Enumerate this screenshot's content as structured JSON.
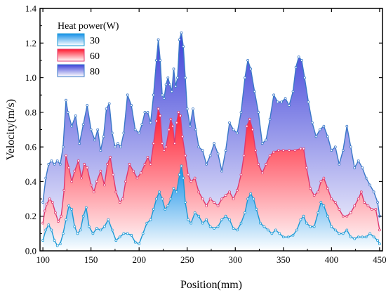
{
  "chart_data": {
    "type": "area",
    "xlabel": "Position(mm)",
    "ylabel": "Velocity(m/s)",
    "xlim": [
      97,
      453
    ],
    "ylim": [
      0,
      1.4
    ],
    "x_ticks": [
      100,
      150,
      200,
      250,
      300,
      350,
      400,
      450
    ],
    "x_tick_labels": [
      "100",
      "150",
      "200",
      "250",
      "300",
      "350",
      "400",
      "450"
    ],
    "y_ticks": [
      0,
      0.2,
      0.4,
      0.6,
      0.8,
      1.0,
      1.2,
      1.4
    ],
    "y_tick_labels": [
      "0.0",
      "0.2",
      "0.4",
      "0.6",
      "0.8",
      "1.0",
      "1.2",
      "1.4"
    ],
    "grid": false,
    "legend": {
      "title": "Heat power(W)",
      "position": "top-left"
    },
    "series": [
      {
        "name": "80",
        "line_color": "#3a78c8",
        "fill_top": "#3c3fd8",
        "fill_bottom": "#ffffff",
        "points": [
          [
            100,
            0.28
          ],
          [
            103,
            0.42
          ],
          [
            106,
            0.5
          ],
          [
            109,
            0.52
          ],
          [
            112,
            0.5
          ],
          [
            115,
            0.52
          ],
          [
            118,
            0.5
          ],
          [
            121,
            0.6
          ],
          [
            124,
            0.87
          ],
          [
            126,
            0.8
          ],
          [
            130,
            0.72
          ],
          [
            134,
            0.78
          ],
          [
            138,
            0.62
          ],
          [
            142,
            0.73
          ],
          [
            146,
            0.84
          ],
          [
            150,
            0.7
          ],
          [
            154,
            0.64
          ],
          [
            157,
            0.7
          ],
          [
            160,
            0.58
          ],
          [
            163,
            0.66
          ],
          [
            166,
            0.82
          ],
          [
            169,
            0.85
          ],
          [
            172,
            0.68
          ],
          [
            175,
            0.6
          ],
          [
            178,
            0.62
          ],
          [
            181,
            0.6
          ],
          [
            184,
            0.68
          ],
          [
            188,
            0.9
          ],
          [
            192,
            0.84
          ],
          [
            196,
            0.7
          ],
          [
            200,
            0.68
          ],
          [
            203,
            0.73
          ],
          [
            206,
            0.8
          ],
          [
            209,
            0.8
          ],
          [
            212,
            0.74
          ],
          [
            215,
            0.9
          ],
          [
            218,
            1.1
          ],
          [
            220,
            1.22
          ],
          [
            222,
            1.1
          ],
          [
            224,
            0.9
          ],
          [
            226,
            0.88
          ],
          [
            228,
            0.96
          ],
          [
            230,
            1.0
          ],
          [
            232,
            0.96
          ],
          [
            234,
            0.92
          ],
          [
            236,
            1.05
          ],
          [
            238,
            0.95
          ],
          [
            240,
            1.0
          ],
          [
            242,
            1.22
          ],
          [
            244,
            1.26
          ],
          [
            246,
            1.18
          ],
          [
            248,
            1.0
          ],
          [
            250,
            0.82
          ],
          [
            253,
            0.72
          ],
          [
            256,
            0.82
          ],
          [
            259,
            0.7
          ],
          [
            262,
            0.6
          ],
          [
            266,
            0.58
          ],
          [
            270,
            0.5
          ],
          [
            274,
            0.55
          ],
          [
            278,
            0.62
          ],
          [
            282,
            0.56
          ],
          [
            286,
            0.46
          ],
          [
            290,
            0.58
          ],
          [
            294,
            0.74
          ],
          [
            298,
            0.7
          ],
          [
            302,
            0.68
          ],
          [
            306,
            0.8
          ],
          [
            310,
            1.0
          ],
          [
            313,
            1.1
          ],
          [
            316,
            1.05
          ],
          [
            320,
            0.92
          ],
          [
            324,
            0.8
          ],
          [
            328,
            0.62
          ],
          [
            332,
            0.64
          ],
          [
            336,
            0.76
          ],
          [
            340,
            0.9
          ],
          [
            344,
            0.86
          ],
          [
            348,
            0.86
          ],
          [
            352,
            0.88
          ],
          [
            356,
            0.84
          ],
          [
            360,
            0.92
          ],
          [
            363,
            1.06
          ],
          [
            366,
            1.12
          ],
          [
            369,
            1.1
          ],
          [
            372,
            1.0
          ],
          [
            376,
            0.86
          ],
          [
            380,
            0.74
          ],
          [
            384,
            0.66
          ],
          [
            388,
            0.7
          ],
          [
            392,
            0.72
          ],
          [
            396,
            0.66
          ],
          [
            400,
            0.58
          ],
          [
            404,
            0.6
          ],
          [
            408,
            0.5
          ],
          [
            412,
            0.58
          ],
          [
            416,
            0.72
          ],
          [
            420,
            0.6
          ],
          [
            424,
            0.48
          ],
          [
            428,
            0.52
          ],
          [
            432,
            0.48
          ],
          [
            436,
            0.42
          ],
          [
            440,
            0.38
          ],
          [
            444,
            0.34
          ],
          [
            448,
            0.28
          ],
          [
            450,
            0.2
          ]
        ]
      },
      {
        "name": "60",
        "line_color": "#e0386e",
        "fill_top": "#ff1a2e",
        "fill_bottom": "#ffffff",
        "points": [
          [
            100,
            0.16
          ],
          [
            102,
            0.23
          ],
          [
            104,
            0.27
          ],
          [
            107,
            0.3
          ],
          [
            110,
            0.28
          ],
          [
            113,
            0.22
          ],
          [
            116,
            0.17
          ],
          [
            119,
            0.2
          ],
          [
            122,
            0.35
          ],
          [
            124,
            0.55
          ],
          [
            127,
            0.48
          ],
          [
            130,
            0.4
          ],
          [
            133,
            0.46
          ],
          [
            137,
            0.52
          ],
          [
            140,
            0.42
          ],
          [
            143,
            0.5
          ],
          [
            146,
            0.48
          ],
          [
            150,
            0.38
          ],
          [
            153,
            0.34
          ],
          [
            156,
            0.4
          ],
          [
            160,
            0.46
          ],
          [
            164,
            0.38
          ],
          [
            167,
            0.5
          ],
          [
            170,
            0.54
          ],
          [
            173,
            0.44
          ],
          [
            176,
            0.34
          ],
          [
            180,
            0.28
          ],
          [
            183,
            0.3
          ],
          [
            186,
            0.4
          ],
          [
            190,
            0.5
          ],
          [
            194,
            0.46
          ],
          [
            198,
            0.42
          ],
          [
            202,
            0.45
          ],
          [
            206,
            0.5
          ],
          [
            209,
            0.54
          ],
          [
            212,
            0.5
          ],
          [
            215,
            0.62
          ],
          [
            218,
            0.75
          ],
          [
            220,
            0.82
          ],
          [
            222,
            0.78
          ],
          [
            224,
            0.62
          ],
          [
            226,
            0.58
          ],
          [
            228,
            0.6
          ],
          [
            231,
            0.7
          ],
          [
            233,
            0.76
          ],
          [
            235,
            0.72
          ],
          [
            237,
            0.62
          ],
          [
            239,
            0.74
          ],
          [
            241,
            0.8
          ],
          [
            243,
            0.78
          ],
          [
            245,
            0.66
          ],
          [
            248,
            0.55
          ],
          [
            251,
            0.44
          ],
          [
            254,
            0.4
          ],
          [
            258,
            0.42
          ],
          [
            262,
            0.34
          ],
          [
            266,
            0.3
          ],
          [
            270,
            0.26
          ],
          [
            274,
            0.3
          ],
          [
            278,
            0.28
          ],
          [
            282,
            0.26
          ],
          [
            286,
            0.3
          ],
          [
            290,
            0.32
          ],
          [
            294,
            0.34
          ],
          [
            298,
            0.3
          ],
          [
            302,
            0.35
          ],
          [
            306,
            0.44
          ],
          [
            309,
            0.55
          ],
          [
            312,
            0.72
          ],
          [
            315,
            0.76
          ],
          [
            318,
            0.7
          ],
          [
            321,
            0.58
          ],
          [
            324,
            0.5
          ],
          [
            328,
            0.45
          ],
          [
            332,
            0.5
          ],
          [
            336,
            0.55
          ],
          [
            340,
            0.57
          ],
          [
            345,
            0.58
          ],
          [
            350,
            0.58
          ],
          [
            356,
            0.58
          ],
          [
            362,
            0.58
          ],
          [
            368,
            0.59
          ],
          [
            371,
            0.59
          ],
          [
            374,
            0.48
          ],
          [
            378,
            0.36
          ],
          [
            382,
            0.32
          ],
          [
            386,
            0.34
          ],
          [
            389,
            0.4
          ],
          [
            392,
            0.42
          ],
          [
            396,
            0.36
          ],
          [
            400,
            0.3
          ],
          [
            404,
            0.28
          ],
          [
            408,
            0.24
          ],
          [
            412,
            0.2
          ],
          [
            416,
            0.2
          ],
          [
            420,
            0.22
          ],
          [
            424,
            0.26
          ],
          [
            428,
            0.3
          ],
          [
            431,
            0.34
          ],
          [
            434,
            0.28
          ],
          [
            438,
            0.26
          ],
          [
            442,
            0.24
          ],
          [
            446,
            0.24
          ],
          [
            450,
            0.12
          ]
        ]
      },
      {
        "name": "30",
        "line_color": "#1b9ad6",
        "fill_top": "#1590e8",
        "fill_bottom": "#ffffff",
        "points": [
          [
            100,
            0.06
          ],
          [
            103,
            0.12
          ],
          [
            106,
            0.15
          ],
          [
            109,
            0.12
          ],
          [
            112,
            0.06
          ],
          [
            115,
            0.03
          ],
          [
            118,
            0.04
          ],
          [
            121,
            0.1
          ],
          [
            124,
            0.18
          ],
          [
            127,
            0.26
          ],
          [
            130,
            0.24
          ],
          [
            133,
            0.14
          ],
          [
            136,
            0.1
          ],
          [
            139,
            0.12
          ],
          [
            142,
            0.2
          ],
          [
            145,
            0.25
          ],
          [
            148,
            0.14
          ],
          [
            152,
            0.1
          ],
          [
            156,
            0.13
          ],
          [
            160,
            0.12
          ],
          [
            164,
            0.14
          ],
          [
            168,
            0.18
          ],
          [
            172,
            0.12
          ],
          [
            176,
            0.06
          ],
          [
            180,
            0.08
          ],
          [
            184,
            0.1
          ],
          [
            188,
            0.1
          ],
          [
            192,
            0.09
          ],
          [
            196,
            0.05
          ],
          [
            200,
            0.04
          ],
          [
            204,
            0.1
          ],
          [
            208,
            0.16
          ],
          [
            212,
            0.18
          ],
          [
            215,
            0.24
          ],
          [
            218,
            0.3
          ],
          [
            221,
            0.34
          ],
          [
            224,
            0.3
          ],
          [
            227,
            0.24
          ],
          [
            230,
            0.26
          ],
          [
            233,
            0.3
          ],
          [
            236,
            0.36
          ],
          [
            239,
            0.34
          ],
          [
            242,
            0.44
          ],
          [
            244,
            0.49
          ],
          [
            246,
            0.42
          ],
          [
            248,
            0.28
          ],
          [
            251,
            0.18
          ],
          [
            254,
            0.16
          ],
          [
            258,
            0.22
          ],
          [
            262,
            0.2
          ],
          [
            266,
            0.16
          ],
          [
            270,
            0.18
          ],
          [
            274,
            0.14
          ],
          [
            278,
            0.13
          ],
          [
            282,
            0.14
          ],
          [
            286,
            0.18
          ],
          [
            290,
            0.2
          ],
          [
            294,
            0.18
          ],
          [
            298,
            0.13
          ],
          [
            302,
            0.12
          ],
          [
            306,
            0.16
          ],
          [
            310,
            0.22
          ],
          [
            313,
            0.3
          ],
          [
            316,
            0.33
          ],
          [
            319,
            0.3
          ],
          [
            322,
            0.24
          ],
          [
            326,
            0.16
          ],
          [
            330,
            0.14
          ],
          [
            334,
            0.12
          ],
          [
            338,
            0.1
          ],
          [
            342,
            0.12
          ],
          [
            346,
            0.1
          ],
          [
            350,
            0.08
          ],
          [
            355,
            0.08
          ],
          [
            360,
            0.09
          ],
          [
            364,
            0.12
          ],
          [
            368,
            0.18
          ],
          [
            371,
            0.2
          ],
          [
            374,
            0.16
          ],
          [
            378,
            0.14
          ],
          [
            382,
            0.14
          ],
          [
            386,
            0.22
          ],
          [
            389,
            0.28
          ],
          [
            392,
            0.26
          ],
          [
            396,
            0.2
          ],
          [
            400,
            0.14
          ],
          [
            404,
            0.12
          ],
          [
            408,
            0.1
          ],
          [
            412,
            0.1
          ],
          [
            416,
            0.12
          ],
          [
            420,
            0.08
          ],
          [
            424,
            0.07
          ],
          [
            428,
            0.08
          ],
          [
            432,
            0.08
          ],
          [
            436,
            0.08
          ],
          [
            440,
            0.1
          ],
          [
            444,
            0.08
          ],
          [
            448,
            0.06
          ],
          [
            450,
            0.04
          ]
        ]
      }
    ]
  },
  "legend_items": [
    {
      "label": "30",
      "color": "#1590e8",
      "border": "#1b9ad6"
    },
    {
      "label": "60",
      "color": "#ff1a2e",
      "border": "#e0386e"
    },
    {
      "label": "80",
      "color": "#3c3fd8",
      "border": "#3a78c8"
    }
  ]
}
